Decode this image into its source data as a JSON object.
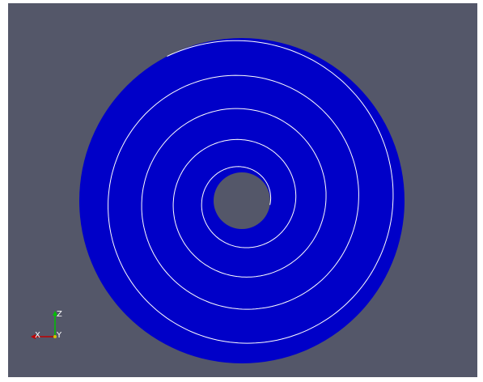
{
  "viewport": {
    "background_color": "#545769",
    "disk_color": "#0000c8",
    "hole_color": "#545769",
    "spiral_color": "#ffffff"
  },
  "orientation_axes": {
    "z_label": "Z",
    "y_label": "Y",
    "x_label": "X",
    "z_color": "#00c000",
    "y_color": "#d4c000",
    "x_color": "#c00000"
  }
}
